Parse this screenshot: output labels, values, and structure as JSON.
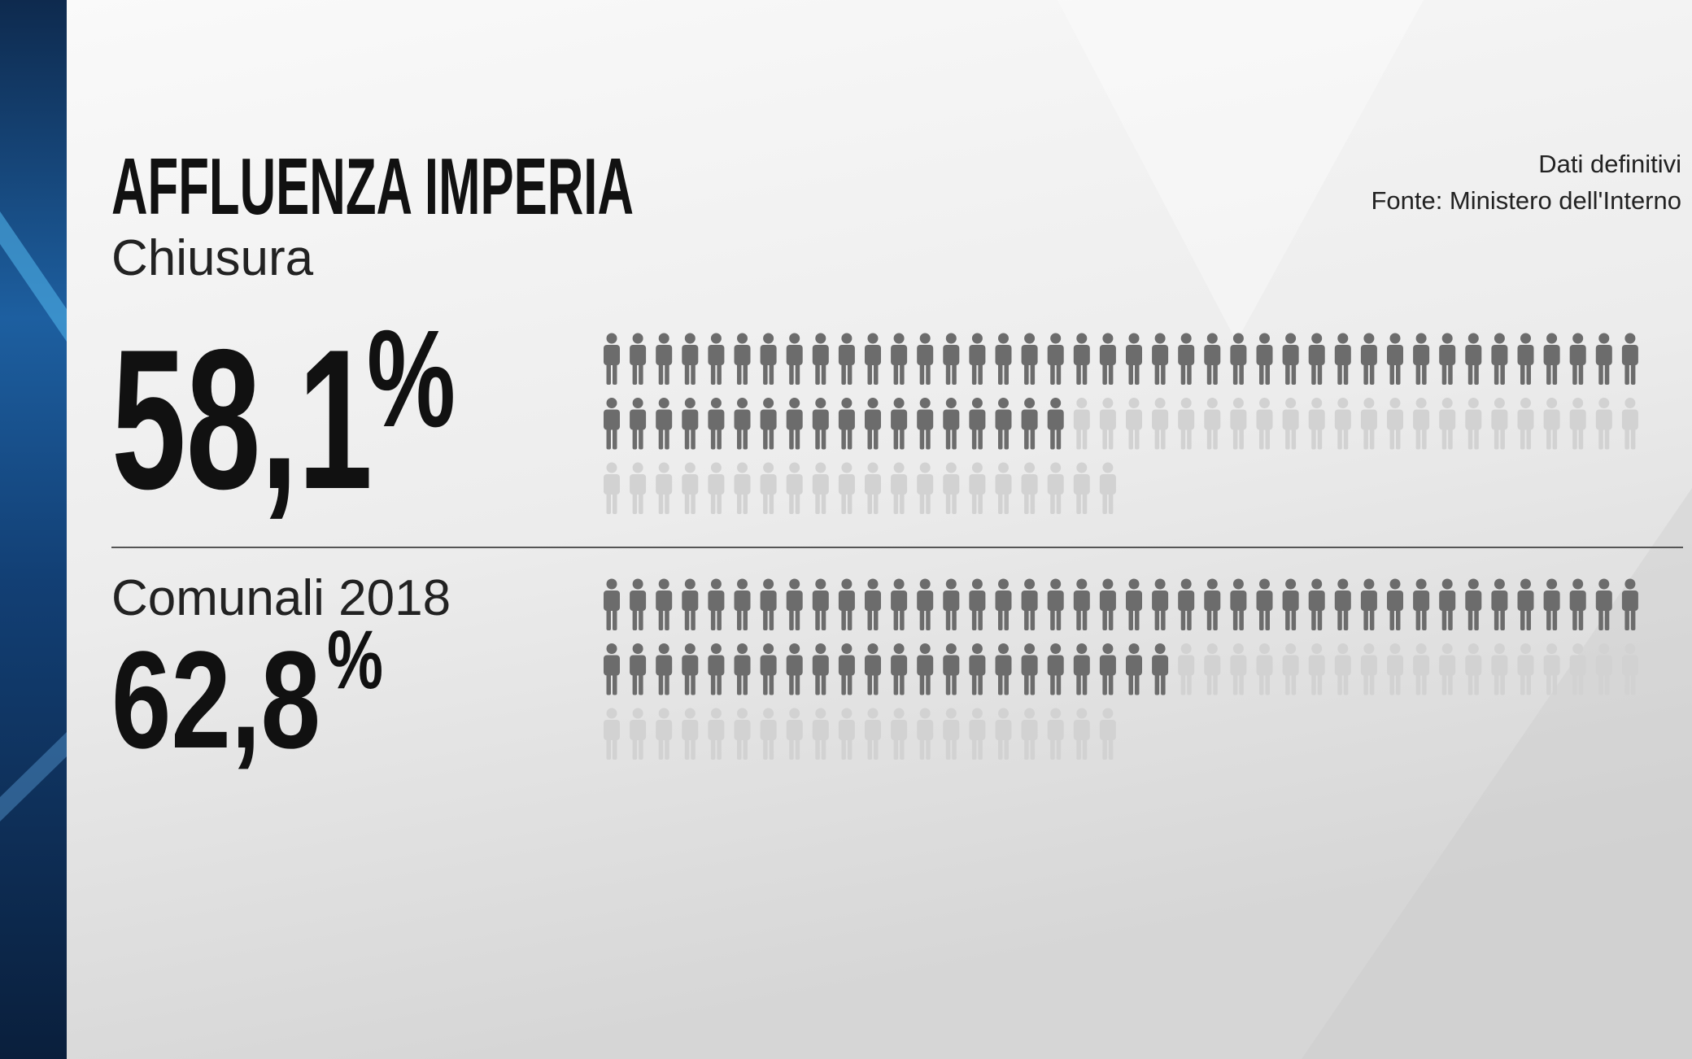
{
  "chart_data": {
    "type": "pictogram",
    "title": "AFFLUENZA IMPERIA",
    "notes": [
      "Dati definitivi",
      "Fonte: Ministero dell'Interno"
    ],
    "categories": [
      "Chiusura",
      "Comunali 2018"
    ],
    "values": [
      58.1,
      62.8
    ],
    "value_labels": [
      "58,1",
      "62,8"
    ],
    "unit": "%",
    "color": "#6c6c6c",
    "empty_color": "#d2d2d2"
  }
}
